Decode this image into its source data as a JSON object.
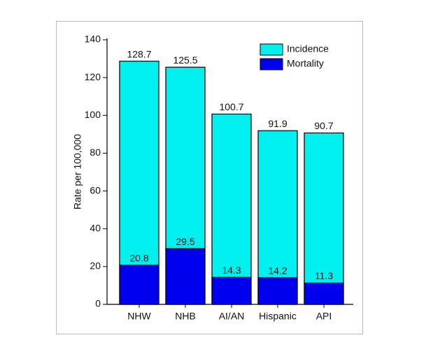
{
  "chart_data": {
    "type": "bar",
    "ylabel": "Rate per 100,000",
    "categories": [
      "NHW",
      "NHB",
      "AI/AN",
      "Hispanic",
      "API"
    ],
    "series": [
      {
        "name": "Incidence",
        "color": "#00f0f0",
        "values": [
          128.7,
          125.5,
          100.7,
          91.9,
          90.7
        ]
      },
      {
        "name": "Mortality",
        "color": "#0000ee",
        "values": [
          20.8,
          29.5,
          14.3,
          14.2,
          11.3
        ]
      }
    ],
    "ylim": [
      0,
      140
    ],
    "yticks": [
      0,
      20,
      40,
      60,
      80,
      100,
      120,
      140
    ],
    "legend": "upper right",
    "overlap": true
  }
}
